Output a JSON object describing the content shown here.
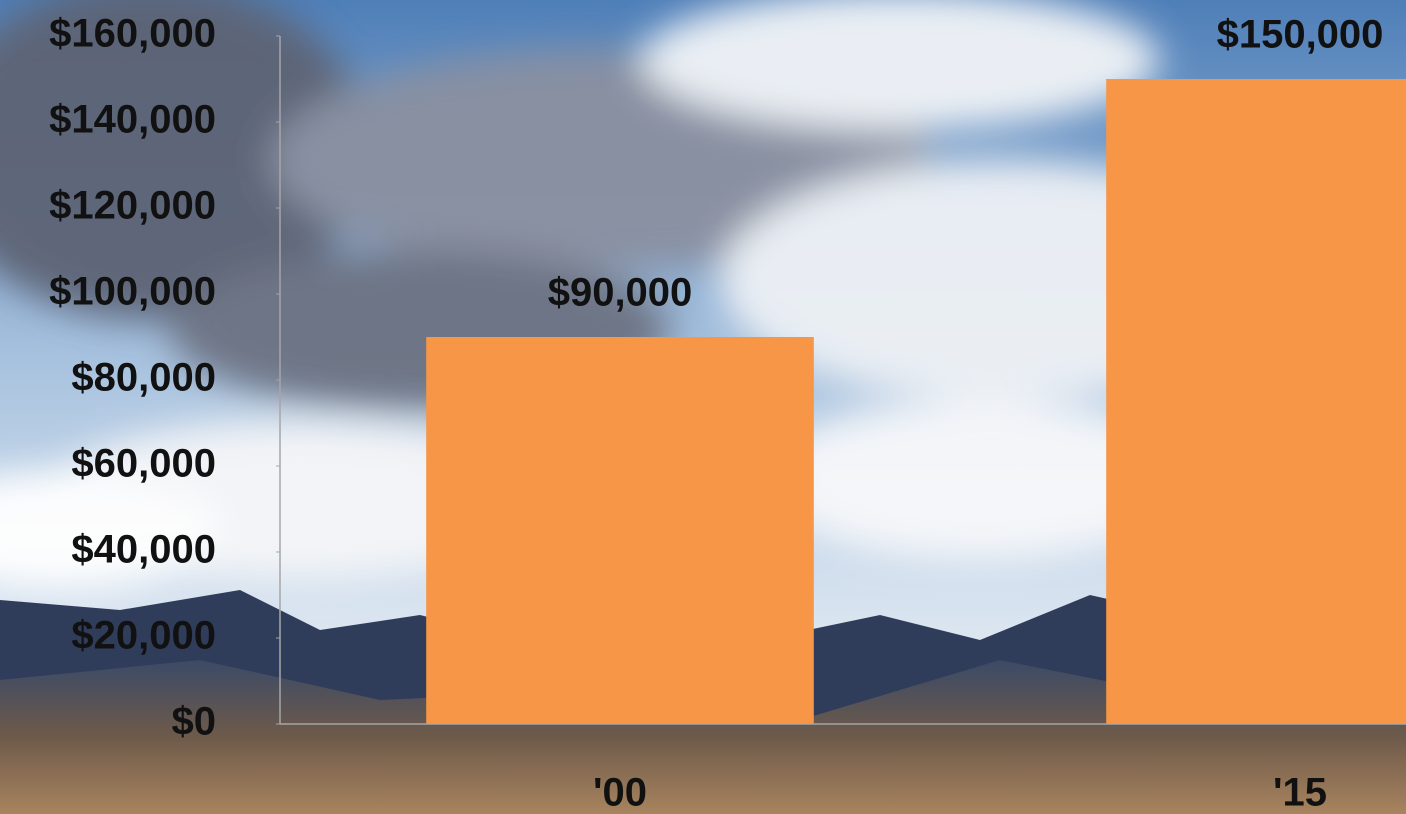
{
  "chart_data": {
    "type": "bar",
    "categories": [
      "'00",
      "'15"
    ],
    "values": [
      90000,
      150000
    ],
    "value_labels": [
      "$90,000",
      "$150,000"
    ],
    "color": "#f79646",
    "ylim": [
      0,
      160000
    ],
    "yticks": [
      {
        "value": 0,
        "label": "$0"
      },
      {
        "value": 20000,
        "label": "$20,000"
      },
      {
        "value": 40000,
        "label": "$40,000"
      },
      {
        "value": 60000,
        "label": "$60,000"
      },
      {
        "value": 80000,
        "label": "$80,000"
      },
      {
        "value": 100000,
        "label": "$100,000"
      },
      {
        "value": 120000,
        "label": "$120,000"
      },
      {
        "value": 140000,
        "label": "$140,000"
      },
      {
        "value": 160000,
        "label": "$160,000"
      }
    ],
    "grid": false
  }
}
